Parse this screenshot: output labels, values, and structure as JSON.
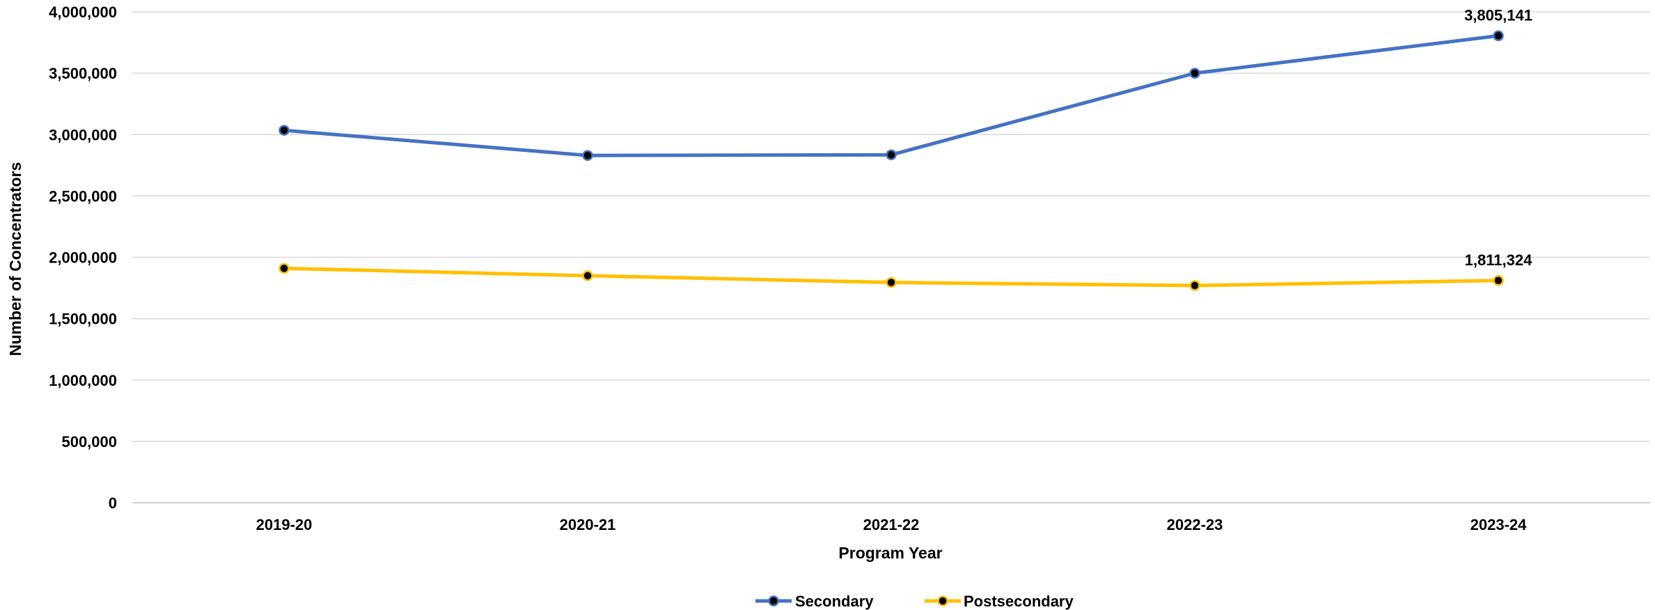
{
  "chart_data": {
    "type": "line",
    "title": "",
    "xlabel": "Program Year",
    "ylabel": "Number of Concentrators",
    "categories": [
      "2019-20",
      "2020-21",
      "2021-22",
      "2022-23",
      "2023-24"
    ],
    "ylim": [
      0,
      4000000
    ],
    "yticks": [
      0,
      500000,
      1000000,
      1500000,
      2000000,
      2500000,
      3000000,
      3500000,
      4000000
    ],
    "ytick_labels": [
      "0",
      "500,000",
      "1,000,000",
      "1,500,000",
      "2,000,000",
      "2,500,000",
      "3,000,000",
      "3,500,000",
      "4,000,000"
    ],
    "grid": true,
    "legend": "bottom-center",
    "series": [
      {
        "name": "Secondary",
        "color": "#4472C4",
        "values": [
          3035000,
          2830000,
          2835000,
          3500000,
          3805141
        ],
        "data_labels": [
          "",
          "",
          "",
          "",
          "3,805,141"
        ]
      },
      {
        "name": "Postsecondary",
        "color": "#FFC000",
        "values": [
          1910000,
          1850000,
          1795000,
          1770000,
          1811324
        ],
        "data_labels": [
          "",
          "",
          "",
          "",
          "1,811,324"
        ]
      }
    ]
  }
}
